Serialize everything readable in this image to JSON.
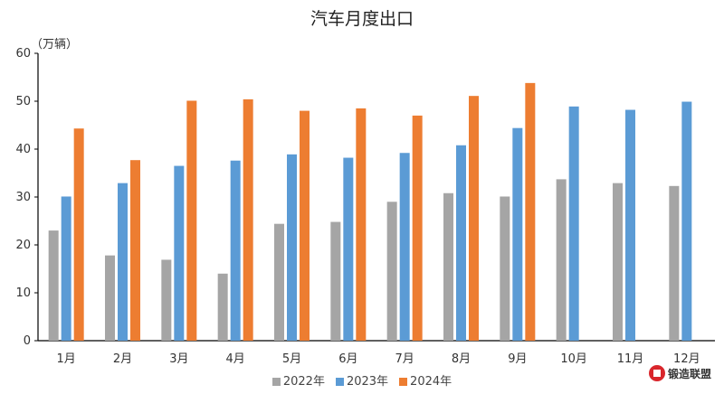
{
  "chart_data": {
    "type": "bar",
    "title": "汽车月度出口",
    "ylabel": "（万辆）",
    "xlabel": "",
    "ylim": [
      0,
      60
    ],
    "yticks": [
      0,
      10,
      20,
      30,
      40,
      50,
      60
    ],
    "grid": false,
    "legend_position": "bottom",
    "categories": [
      "1月",
      "2月",
      "3月",
      "4月",
      "5月",
      "6月",
      "7月",
      "8月",
      "9月",
      "10月",
      "11月",
      "12月"
    ],
    "series": [
      {
        "name": "2022年",
        "color": "#a5a5a5",
        "values": [
          23.0,
          17.8,
          16.9,
          14.0,
          24.4,
          24.8,
          29.0,
          30.8,
          30.1,
          33.7,
          32.9,
          32.3
        ]
      },
      {
        "name": "2023年",
        "color": "#5b9bd5",
        "values": [
          30.1,
          32.9,
          36.5,
          37.6,
          38.9,
          38.2,
          39.2,
          40.8,
          44.4,
          48.9,
          48.2,
          49.9
        ]
      },
      {
        "name": "2024年",
        "color": "#ed7d31",
        "values": [
          44.3,
          37.7,
          50.1,
          50.4,
          48.0,
          48.5,
          47.0,
          51.1,
          53.8,
          null,
          null,
          null
        ]
      }
    ]
  },
  "logo": {
    "text": "锻造联盟"
  }
}
